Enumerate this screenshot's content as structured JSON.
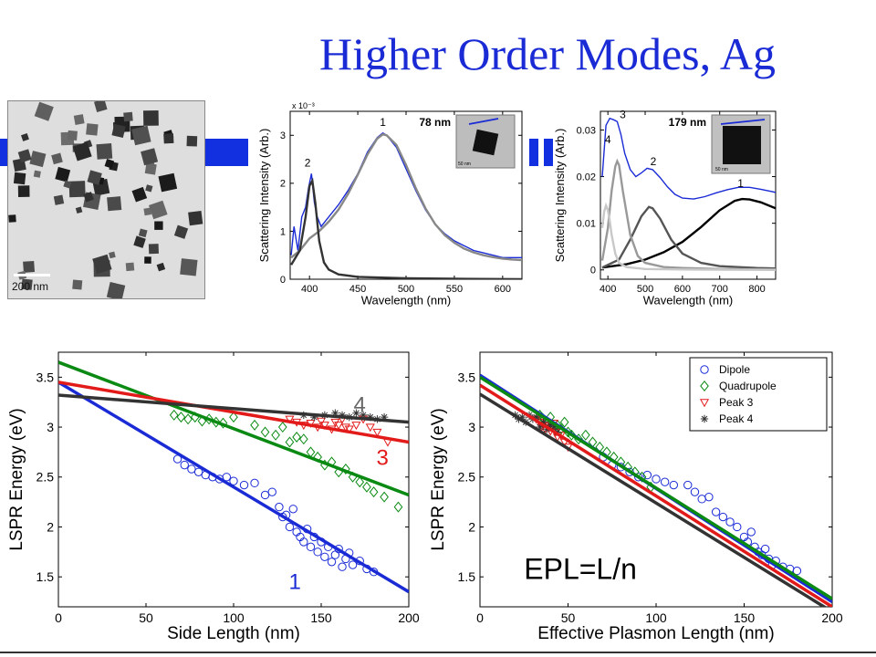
{
  "slide": {
    "title": "Higher Order Modes, Ag",
    "tem_label": "200 nm"
  },
  "colors": {
    "title": "#1a2bd6",
    "accent_bar": "#1230e0",
    "blue": "#1a2bd6",
    "green": "#0a8a12",
    "red": "#e21a1a",
    "dark": "#333333"
  },
  "chart_data": [
    {
      "id": "spectrum-78nm",
      "type": "line",
      "xlabel": "Wavelength (nm)",
      "ylabel": "Scattering Intensity (Arb.)",
      "y_multiplier": "x 10⁻³",
      "size_label": "78 nm",
      "inset_scale": "50 nm",
      "xlim": [
        380,
        620
      ],
      "ylim": [
        0,
        3.5
      ],
      "xticks": [
        400,
        450,
        500,
        550,
        600
      ],
      "yticks": [
        0,
        1,
        2,
        3
      ],
      "peak_labels": [
        {
          "text": "2",
          "x": 398,
          "y": 2.35
        },
        {
          "text": "1",
          "x": 476,
          "y": 3.2
        }
      ],
      "series": [
        {
          "name": "",
          "color": "#1a2bd6",
          "kind": "measured",
          "x": [
            381,
            384,
            388,
            392,
            396,
            399,
            402,
            405,
            408,
            412,
            416,
            420,
            430,
            440,
            450,
            460,
            470,
            476,
            480,
            490,
            500,
            510,
            520,
            530,
            540,
            550,
            560,
            570,
            580,
            590,
            600,
            610,
            620
          ],
          "y": [
            0.5,
            1.1,
            0.6,
            1.3,
            1.5,
            1.9,
            2.2,
            1.6,
            1.3,
            1.1,
            1.2,
            1.3,
            1.55,
            1.85,
            2.2,
            2.65,
            2.95,
            3.05,
            3.0,
            2.75,
            2.3,
            1.85,
            1.45,
            1.15,
            0.95,
            0.8,
            0.7,
            0.6,
            0.55,
            0.5,
            0.45,
            0.45,
            0.45
          ]
        },
        {
          "name": "",
          "color": "#888888",
          "kind": "fit",
          "x": [
            381,
            390,
            400,
            410,
            420,
            430,
            440,
            450,
            460,
            470,
            476,
            480,
            490,
            500,
            510,
            520,
            530,
            540,
            550,
            560,
            570,
            580,
            590,
            600,
            610,
            620
          ],
          "y": [
            0.45,
            0.6,
            0.85,
            1.0,
            1.2,
            1.45,
            1.78,
            2.18,
            2.6,
            2.93,
            3.02,
            3.0,
            2.8,
            2.38,
            1.9,
            1.48,
            1.15,
            0.92,
            0.76,
            0.64,
            0.56,
            0.5,
            0.46,
            0.43,
            0.41,
            0.4
          ]
        },
        {
          "name": "",
          "color": "#333333",
          "kind": "fit",
          "x": [
            381,
            390,
            396,
            400,
            403,
            406,
            410,
            415,
            420,
            430,
            450,
            500,
            550,
            620
          ],
          "y": [
            0.3,
            0.6,
            1.3,
            1.95,
            2.05,
            1.6,
            0.8,
            0.35,
            0.2,
            0.1,
            0.05,
            0.02,
            0.01,
            0.0
          ]
        }
      ]
    },
    {
      "id": "spectrum-179nm",
      "type": "line",
      "xlabel": "Wavelength (nm)",
      "ylabel": "Scattering Intensity (Arb.)",
      "size_label": "179 nm",
      "inset_scale": "50 nm",
      "xlim": [
        380,
        850
      ],
      "ylim": [
        -0.002,
        0.034
      ],
      "xticks": [
        400,
        500,
        600,
        700,
        800
      ],
      "yticks": [
        0,
        0.01,
        0.02,
        0.03
      ],
      "ytick_labels": [
        "0",
        "0.01",
        "0.02",
        "0.03"
      ],
      "peak_labels": [
        {
          "text": "3",
          "x": 440,
          "y": 0.0325
        },
        {
          "text": "4",
          "x": 400,
          "y": 0.0272
        },
        {
          "text": "2",
          "x": 522,
          "y": 0.0225
        },
        {
          "text": "1",
          "x": 756,
          "y": 0.0178
        }
      ],
      "series": [
        {
          "name": "",
          "color": "#1a2bd6",
          "kind": "measured",
          "x": [
            385,
            395,
            405,
            415,
            425,
            435,
            445,
            460,
            475,
            490,
            505,
            520,
            540,
            560,
            580,
            600,
            630,
            660,
            690,
            720,
            750,
            780,
            810,
            840,
            850
          ],
          "y": [
            0.02,
            0.031,
            0.0325,
            0.0322,
            0.0318,
            0.029,
            0.025,
            0.0215,
            0.02,
            0.0208,
            0.0218,
            0.0215,
            0.0198,
            0.0178,
            0.0162,
            0.0154,
            0.0152,
            0.0157,
            0.0165,
            0.0172,
            0.0177,
            0.0177,
            0.0173,
            0.0168,
            0.0166
          ]
        },
        {
          "name": "",
          "color": "#000000",
          "kind": "fit",
          "x": [
            385,
            450,
            500,
            550,
            600,
            650,
            700,
            740,
            760,
            780,
            810,
            850
          ],
          "y": [
            0.0005,
            0.0012,
            0.0022,
            0.0038,
            0.006,
            0.0092,
            0.0128,
            0.0148,
            0.0152,
            0.0151,
            0.0145,
            0.0132
          ]
        },
        {
          "name": "",
          "color": "#555555",
          "kind": "fit",
          "x": [
            385,
            430,
            460,
            490,
            510,
            520,
            540,
            570,
            600,
            650,
            700,
            800,
            850
          ],
          "y": [
            0.0005,
            0.0022,
            0.0065,
            0.0115,
            0.0135,
            0.0132,
            0.011,
            0.0065,
            0.0035,
            0.0015,
            0.0008,
            0.0004,
            0.0003
          ]
        },
        {
          "name": "",
          "color": "#999999",
          "kind": "fit",
          "x": [
            385,
            400,
            410,
            420,
            425,
            430,
            440,
            460,
            480,
            500,
            550,
            600,
            700,
            850
          ],
          "y": [
            0.002,
            0.009,
            0.017,
            0.0222,
            0.0233,
            0.0225,
            0.017,
            0.0075,
            0.003,
            0.0015,
            0.0006,
            0.0004,
            0.0002,
            0.0001
          ]
        },
        {
          "name": "",
          "color": "#c8c8c8",
          "kind": "fit",
          "x": [
            385,
            390,
            395,
            400,
            405,
            410,
            420,
            430,
            450,
            500,
            600,
            850
          ],
          "y": [
            0.009,
            0.0125,
            0.0138,
            0.0128,
            0.0105,
            0.0075,
            0.0035,
            0.0015,
            0.0006,
            0.0002,
            0.0001,
            0.0
          ]
        }
      ]
    },
    {
      "id": "energy-vs-side-length",
      "type": "scatter",
      "xlabel": "Side Length (nm)",
      "ylabel": "LSPR Energy (eV)",
      "xlim": [
        0,
        200
      ],
      "ylim": [
        1.2,
        3.75
      ],
      "xticks": [
        0,
        50,
        100,
        150,
        200
      ],
      "yticks": [
        1.5,
        2,
        2.5,
        3,
        3.5
      ],
      "ytick_labels": [
        "1.5",
        "2",
        "2.5",
        "3",
        "3.5"
      ],
      "mode_labels": [
        {
          "text": "4",
          "x": 172,
          "y": 3.15,
          "color": "#666666"
        },
        {
          "text": "3",
          "x": 185,
          "y": 2.62,
          "color": "#e21a1a"
        },
        {
          "text": "1",
          "x": 135,
          "y": 1.38,
          "color": "#1a2bd6"
        }
      ],
      "series": [
        {
          "name": "Dipole",
          "marker": "circle",
          "color": "#1a2bd6",
          "x": [
            68,
            72,
            76,
            80,
            84,
            88,
            92,
            96,
            100,
            106,
            112,
            118,
            122,
            126,
            128,
            130,
            132,
            134,
            136,
            138,
            140,
            142,
            144,
            146,
            148,
            150,
            152,
            154,
            156,
            158,
            160,
            162,
            164,
            166,
            168,
            172,
            176,
            180
          ],
          "y": [
            2.68,
            2.62,
            2.58,
            2.55,
            2.52,
            2.5,
            2.48,
            2.5,
            2.46,
            2.42,
            2.44,
            2.32,
            2.35,
            2.2,
            2.1,
            2.12,
            2.0,
            2.18,
            1.95,
            1.9,
            1.85,
            1.98,
            1.8,
            1.9,
            1.75,
            1.85,
            1.7,
            1.8,
            1.65,
            1.72,
            1.78,
            1.6,
            1.68,
            1.74,
            1.62,
            1.66,
            1.58,
            1.55
          ],
          "fit": {
            "x": [
              0,
              200
            ],
            "y": [
              3.45,
              1.35
            ],
            "color": "#1a2bd6"
          }
        },
        {
          "name": "Quadrupole",
          "marker": "diamond",
          "color": "#0a8a12",
          "x": [
            66,
            70,
            74,
            78,
            82,
            86,
            90,
            94,
            100,
            112,
            118,
            124,
            128,
            132,
            136,
            140,
            144,
            148,
            152,
            156,
            160,
            164,
            168,
            172,
            176,
            180,
            186,
            194
          ],
          "y": [
            3.12,
            3.1,
            3.08,
            3.1,
            3.06,
            3.08,
            3.05,
            3.04,
            3.1,
            3.02,
            2.95,
            2.92,
            3.0,
            2.85,
            2.9,
            2.88,
            2.75,
            2.7,
            2.62,
            2.65,
            2.55,
            2.58,
            2.5,
            2.45,
            2.4,
            2.35,
            2.3,
            2.2
          ],
          "fit": {
            "x": [
              0,
              200
            ],
            "y": [
              3.65,
              2.32
            ],
            "color": "#0a8a12"
          }
        },
        {
          "name": "Peak 3",
          "marker": "triangle",
          "color": "#e21a1a",
          "x": [
            132,
            136,
            140,
            144,
            148,
            150,
            152,
            156,
            158,
            160,
            162,
            164,
            166,
            170,
            174,
            178,
            182,
            188
          ],
          "y": [
            3.08,
            3.05,
            3.02,
            3.04,
            3.0,
            3.06,
            3.02,
            2.98,
            3.05,
            3.02,
            3.08,
            3.0,
            2.98,
            3.02,
            3.08,
            3.0,
            2.95,
            2.85
          ],
          "fit": {
            "x": [
              0,
              200
            ],
            "y": [
              3.45,
              2.85
            ],
            "color": "#e21a1a"
          }
        },
        {
          "name": "Peak 4",
          "marker": "star",
          "color": "#333333",
          "x": [
            140,
            146,
            152,
            158,
            162,
            166,
            170,
            174,
            178,
            182,
            186
          ],
          "y": [
            3.12,
            3.1,
            3.12,
            3.14,
            3.12,
            3.1,
            3.14,
            3.12,
            3.1,
            3.08,
            3.1
          ],
          "fit": {
            "x": [
              0,
              200
            ],
            "y": [
              3.32,
              3.05
            ],
            "color": "#333333"
          }
        }
      ]
    },
    {
      "id": "energy-vs-epl",
      "type": "scatter",
      "xlabel": "Effective Plasmon Length (nm)",
      "ylabel": "LSPR Energy (eV)",
      "xlim": [
        0,
        200
      ],
      "ylim": [
        1.2,
        3.75
      ],
      "xticks": [
        0,
        50,
        100,
        150,
        200
      ],
      "yticks": [
        1.5,
        2,
        2.5,
        3,
        3.5
      ],
      "ytick_labels": [
        "1.5",
        "2",
        "2.5",
        "3",
        "3.5"
      ],
      "annotation": "EPL=L/n",
      "legend_position": "top-right",
      "series": [
        {
          "name": "Dipole",
          "marker": "circle",
          "color": "#1a2bd6",
          "x": [
            70,
            75,
            80,
            85,
            90,
            95,
            100,
            105,
            110,
            118,
            122,
            126,
            130,
            134,
            138,
            142,
            146,
            150,
            152,
            154,
            156,
            158,
            160,
            162,
            164,
            166,
            168,
            172,
            176,
            180
          ],
          "y": [
            2.7,
            2.62,
            2.6,
            2.55,
            2.5,
            2.52,
            2.48,
            2.45,
            2.42,
            2.42,
            2.35,
            2.28,
            2.3,
            2.15,
            2.1,
            2.05,
            2.0,
            1.9,
            1.85,
            1.95,
            1.8,
            1.75,
            1.72,
            1.78,
            1.68,
            1.62,
            1.66,
            1.6,
            1.58,
            1.56
          ],
          "fit": {
            "x": [
              0,
              200
            ],
            "y": [
              3.52,
              1.25
            ],
            "color": "#1a2bd6"
          }
        },
        {
          "name": "Quadrupole",
          "marker": "diamond",
          "color": "#0a8a12",
          "x": [
            34,
            36,
            38,
            40,
            42,
            44,
            46,
            48,
            50,
            52,
            56,
            60,
            64,
            68,
            72,
            76,
            80,
            84,
            88,
            92,
            97
          ],
          "y": [
            3.12,
            3.08,
            3.05,
            3.1,
            3.0,
            3.02,
            2.98,
            3.05,
            2.95,
            2.92,
            2.88,
            2.92,
            2.85,
            2.8,
            2.75,
            2.7,
            2.65,
            2.6,
            2.55,
            2.5,
            2.4
          ],
          "fit": {
            "x": [
              0,
              200
            ],
            "y": [
              3.5,
              1.28
            ],
            "color": "#0a8a12"
          }
        },
        {
          "name": "Peak 3",
          "marker": "triangle",
          "color": "#e21a1a",
          "x": [
            32,
            34,
            35,
            36,
            37,
            38,
            39,
            40,
            41,
            42,
            43,
            44,
            46,
            48,
            50
          ],
          "y": [
            3.08,
            3.05,
            3.0,
            3.02,
            2.98,
            3.05,
            3.02,
            2.96,
            3.0,
            3.04,
            2.95,
            2.9,
            2.92,
            2.85,
            2.8
          ],
          "fit": {
            "x": [
              0,
              200
            ],
            "y": [
              3.42,
              1.2
            ],
            "color": "#e21a1a"
          }
        },
        {
          "name": "Peak 4",
          "marker": "star",
          "color": "#333333",
          "x": [
            20,
            22,
            24,
            26,
            28,
            30,
            32,
            34,
            36,
            38,
            40,
            42,
            44
          ],
          "y": [
            3.12,
            3.08,
            3.1,
            3.05,
            3.12,
            3.08,
            3.1,
            3.0,
            3.05,
            2.98,
            3.02,
            3.0,
            2.95
          ],
          "fit": {
            "x": [
              0,
              200
            ],
            "y": [
              3.33,
              1.15
            ],
            "color": "#333333"
          }
        }
      ]
    }
  ]
}
